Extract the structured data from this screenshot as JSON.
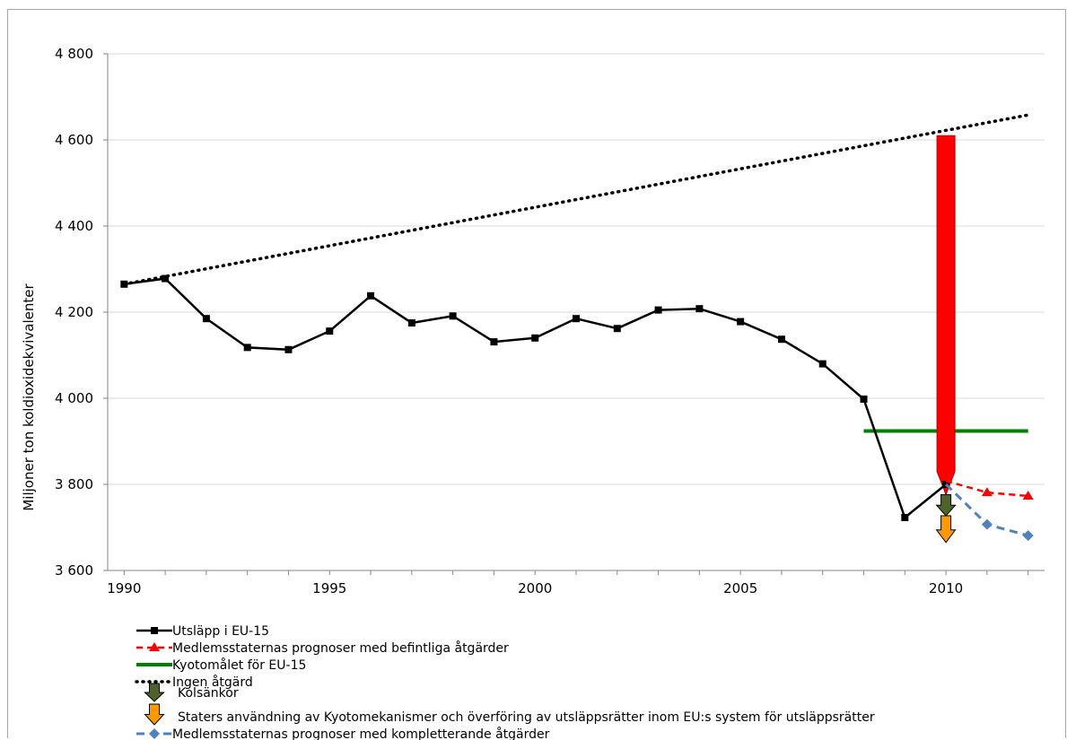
{
  "chart_data": {
    "type": "line",
    "ylabel": "Miljoner ton koldioxidekvivalenter",
    "xlabel": "",
    "ylim": [
      3600,
      4800
    ],
    "yticks": [
      3600,
      3800,
      4000,
      4200,
      4400,
      4600,
      4800
    ],
    "ytick_labels": [
      "3 600",
      "3 800",
      "4 000",
      "4 200",
      "4 400",
      "4 600",
      "4 800"
    ],
    "xlim": [
      1989.6,
      2012.4
    ],
    "xticks": [
      1990,
      1995,
      2000,
      2005,
      2010
    ],
    "xtick_labels": [
      "1990",
      "1995",
      "2000",
      "2005",
      "2010"
    ],
    "grid": "horizontal",
    "legend_position": "bottom-left",
    "series": [
      {
        "name": "Utsläpp i EU-15",
        "color": "#000000",
        "style": "solid",
        "marker": "square",
        "x": [
          1990,
          1991,
          1992,
          1993,
          1994,
          1995,
          1996,
          1997,
          1998,
          1999,
          2000,
          2001,
          2002,
          2003,
          2004,
          2005,
          2006,
          2007,
          2008,
          2009,
          2010
        ],
        "y": [
          4265,
          4278,
          4185,
          4118,
          4113,
          4156,
          4238,
          4175,
          4191,
          4131,
          4140,
          4185,
          4162,
          4205,
          4208,
          4178,
          4137,
          4080,
          3998,
          3723,
          3800
        ]
      },
      {
        "name": "Medlemsstaternas prognoser med befintliga åtgärder",
        "color": "#ff0000",
        "style": "dashed",
        "marker": "triangle",
        "x": [
          2010,
          2011,
          2012
        ],
        "y": [
          3808,
          3781,
          3773
        ]
      },
      {
        "name": "Kyotomålet för EU-15",
        "color": "#008000",
        "style": "solid",
        "marker": "none",
        "x": [
          2008,
          2012
        ],
        "y": [
          3924,
          3924
        ]
      },
      {
        "name": "Ingen åtgärd",
        "color": "#000000",
        "style": "dotted",
        "marker": "none",
        "x": [
          1990,
          2012
        ],
        "y": [
          4265,
          4658
        ]
      },
      {
        "name": "Kolsänkor",
        "color": "#4f6228",
        "style": "arrow",
        "marker": "arrow",
        "x": [
          2010,
          2010
        ],
        "y": [
          3776,
          3727
        ]
      },
      {
        "name": "Staters användning av Kyotomekanismer och överföring av utsläppsrätter inom EU:s system för utsläppsrätter",
        "color": "#ff9900",
        "style": "arrow",
        "marker": "arrow",
        "x": [
          2010,
          2010
        ],
        "y": [
          3727,
          3665
        ]
      },
      {
        "name": "Medlemsstaternas prognoser med kompletterande åtgärder",
        "color": "#4f81bd",
        "style": "dashed",
        "marker": "diamond",
        "x": [
          2010,
          2011,
          2012
        ],
        "y": [
          3800,
          3707,
          3681
        ]
      }
    ],
    "annotations": [
      {
        "type": "arrow",
        "color": "#ff0000",
        "x": 2010,
        "y_from": 4610,
        "y_to": 3776
      }
    ]
  }
}
